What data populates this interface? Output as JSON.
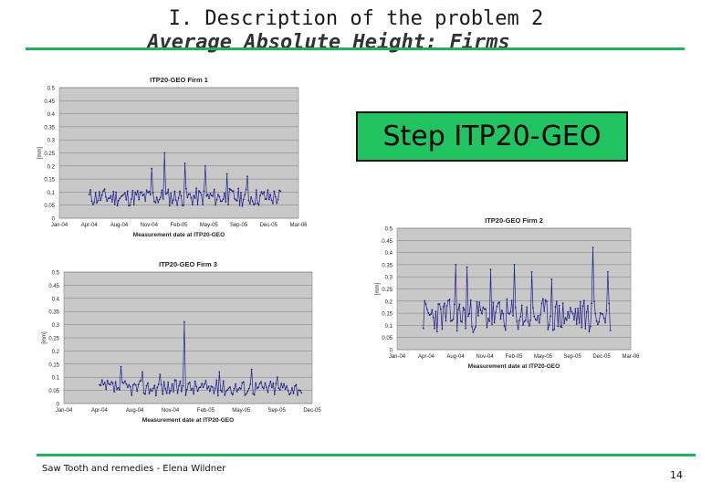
{
  "slide": {
    "title_line1": "I. Description of the problem 2",
    "title_line2": "Average Absolute Height: Firms",
    "step_box": "Step ITP20-GEO",
    "footer": "Saw Tooth and remedies - Elena Wildner",
    "page_number": "14",
    "colors": {
      "rule": "#1fb45a",
      "step_box": "#22c462",
      "series": "#1f1f8c",
      "plot_bg": "#c8c8c8"
    }
  },
  "chart_data": [
    {
      "type": "line",
      "title": "ITP20-GEO Firm 1",
      "xlabel": "Measurement date at ITP20-GEO",
      "ylabel": "[mm]",
      "ylim": [
        0,
        0.5
      ],
      "yticks": [
        "0",
        "0.05",
        "0.1",
        "0.15",
        "0.2",
        "0.25",
        "0.3",
        "0.35",
        "0.4",
        "0.45",
        "0.5"
      ],
      "xticks": [
        "Jan-04",
        "Apr-04",
        "Aug-04",
        "Nov-04",
        "Feb-05",
        "May-05",
        "Sep-05",
        "Dec-05",
        "Mar-06"
      ],
      "x_range": [
        0,
        8
      ],
      "data_range": [
        1.0,
        7.4
      ],
      "baseline": 0.08,
      "spread": 0.035,
      "seed": 11,
      "spikes": [
        [
          3.1,
          0.19
        ],
        [
          3.5,
          0.25
        ],
        [
          4.2,
          0.21
        ],
        [
          4.9,
          0.2
        ],
        [
          5.6,
          0.17
        ],
        [
          6.3,
          0.16
        ]
      ],
      "grid": true
    },
    {
      "type": "line",
      "title": "ITP20-GEO Firm 2",
      "xlabel": "Measurement date at ITP20-GEO",
      "ylabel": "[mm]",
      "ylim": [
        0,
        0.5
      ],
      "yticks": [
        "0",
        "0.05",
        "0.1",
        "0.15",
        "0.2",
        "0.25",
        "0.3",
        "0.35",
        "0.4",
        "0.45",
        "0.5"
      ],
      "xticks": [
        "Jan-04",
        "Apr-04",
        "Aug-04",
        "Nov-04",
        "Feb-05",
        "May-05",
        "Sep-05",
        "Dec-05",
        "Mar-06"
      ],
      "x_range": [
        0,
        8
      ],
      "data_range": [
        0.9,
        7.3
      ],
      "baseline": 0.14,
      "spread": 0.07,
      "seed": 23,
      "spikes": [
        [
          2.0,
          0.35
        ],
        [
          2.4,
          0.34
        ],
        [
          3.2,
          0.33
        ],
        [
          4.0,
          0.35
        ],
        [
          4.6,
          0.32
        ],
        [
          5.3,
          0.29
        ],
        [
          6.7,
          0.42
        ],
        [
          7.2,
          0.32
        ]
      ],
      "grid": true
    },
    {
      "type": "line",
      "title": "ITP20-GEO Firm 3",
      "xlabel": "Measurement date at ITP20-GEO",
      "ylabel": "[mm]",
      "ylim": [
        0,
        0.5
      ],
      "yticks": [
        "0",
        "0.05",
        "0.1",
        "0.15",
        "0.2",
        "0.25",
        "0.3",
        "0.35",
        "0.4",
        "0.45",
        "0.5"
      ],
      "xticks": [
        "Jan-04",
        "Apr-04",
        "Aug-04",
        "Nov-04",
        "Feb-05",
        "May-05",
        "Sep-05",
        "Dec-05"
      ],
      "x_range": [
        0,
        7
      ],
      "data_range": [
        1.0,
        6.7
      ],
      "baseline": 0.06,
      "spread": 0.03,
      "seed": 37,
      "spikes": [
        [
          1.6,
          0.14
        ],
        [
          2.2,
          0.12
        ],
        [
          2.7,
          0.11
        ],
        [
          3.4,
          0.31
        ],
        [
          4.4,
          0.12
        ],
        [
          5.3,
          0.13
        ],
        [
          6.0,
          0.1
        ]
      ],
      "grid": true
    }
  ]
}
